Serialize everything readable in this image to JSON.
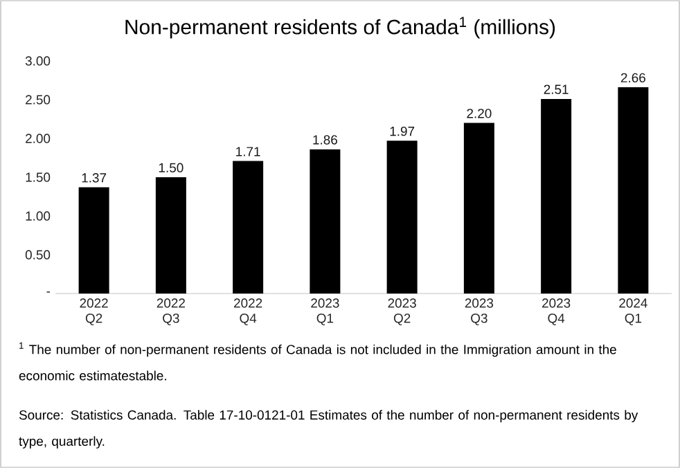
{
  "chart_data": {
    "type": "bar",
    "title": "Non-permanent residents of Canada$^{1}$ (millions)",
    "categories": [
      "2022 Q2",
      "2022 Q3",
      "2022 Q4",
      "2023 Q1",
      "2023 Q2",
      "2023 Q3",
      "2023 Q4",
      "2024 Q1"
    ],
    "values": [
      1.37,
      1.5,
      1.71,
      1.86,
      1.97,
      2.2,
      2.51,
      2.66
    ],
    "value_labels": [
      "1.37",
      "1.50",
      "1.71",
      "1.86",
      "1.97",
      "2.20",
      "2.51",
      "2.66"
    ],
    "color": "#000000",
    "ylim": [
      0,
      3
    ],
    "yticks": [
      {
        "value": 0,
        "label": "-"
      },
      {
        "value": 0.5,
        "label": "0.50"
      },
      {
        "value": 1,
        "label": "1.00"
      },
      {
        "value": 1.5,
        "label": "1.50"
      },
      {
        "value": 2,
        "label": "2.00"
      },
      {
        "value": 2.5,
        "label": "2.50"
      },
      {
        "value": 3,
        "label": "3.00"
      }
    ],
    "annotations": [
      "$^{1}$ The number of non-permanent residents of Canada is not included in the Immigration amount in the economic estimatestable.",
      "Source: Statistics Canada. Table 17-10-0121-01 Estimates of the number of non-permanent residents by type, quarterly."
    ]
  }
}
